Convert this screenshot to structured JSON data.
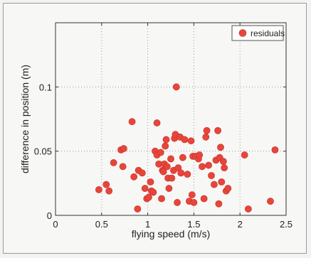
{
  "chart_data": {
    "type": "scatter",
    "title": "",
    "xlabel": "flying speed (m/s)",
    "ylabel": "difference in position (m)",
    "xlim": [
      0,
      2.5
    ],
    "ylim": [
      0,
      0.15
    ],
    "xticks": [
      0,
      0.5,
      1,
      1.5,
      2,
      2.5
    ],
    "xtick_labels": [
      "0",
      "0.5",
      "1",
      "1.5",
      "2",
      "2.5"
    ],
    "yticks": [
      0,
      0.05,
      0.1
    ],
    "ytick_labels": [
      "0",
      "0.05",
      "0.1"
    ],
    "grid": true,
    "grid_style": "dotted",
    "legend": {
      "position": "top-right",
      "entries": [
        "residuals"
      ]
    },
    "series": [
      {
        "name": "residuals",
        "color": "#e8453a",
        "points": [
          [
            0.47,
            0.02
          ],
          [
            0.55,
            0.024
          ],
          [
            0.58,
            0.019
          ],
          [
            0.63,
            0.041
          ],
          [
            0.71,
            0.051
          ],
          [
            0.73,
            0.038
          ],
          [
            0.74,
            0.052
          ],
          [
            0.83,
            0.073
          ],
          [
            0.85,
            0.03
          ],
          [
            0.89,
            0.005
          ],
          [
            0.9,
            0.035
          ],
          [
            0.94,
            0.033
          ],
          [
            0.97,
            0.021
          ],
          [
            0.99,
            0.013
          ],
          [
            1.01,
            0.014
          ],
          [
            1.03,
            0.026
          ],
          [
            1.04,
            0.019
          ],
          [
            1.06,
            0.018
          ],
          [
            1.08,
            0.05
          ],
          [
            1.1,
            0.072
          ],
          [
            1.1,
            0.047
          ],
          [
            1.12,
            0.04
          ],
          [
            1.14,
            0.049
          ],
          [
            1.15,
            0.013
          ],
          [
            1.16,
            0.035
          ],
          [
            1.17,
            0.034
          ],
          [
            1.18,
            0.04
          ],
          [
            1.19,
            0.054
          ],
          [
            1.2,
            0.059
          ],
          [
            1.21,
            0.038
          ],
          [
            1.22,
            0.029
          ],
          [
            1.23,
            0.021
          ],
          [
            1.25,
            0.044
          ],
          [
            1.26,
            0.029
          ],
          [
            1.28,
            0.035
          ],
          [
            1.29,
            0.06
          ],
          [
            1.3,
            0.063
          ],
          [
            1.31,
            0.1
          ],
          [
            1.32,
            0.01
          ],
          [
            1.33,
            0.037
          ],
          [
            1.35,
            0.061
          ],
          [
            1.36,
            0.033
          ],
          [
            1.38,
            0.045
          ],
          [
            1.4,
            0.059
          ],
          [
            1.43,
            0.032
          ],
          [
            1.45,
            0.011
          ],
          [
            1.47,
            0.058
          ],
          [
            1.48,
            0.016
          ],
          [
            1.49,
            0.046
          ],
          [
            1.5,
            0.01
          ],
          [
            1.52,
            0.046
          ],
          [
            1.55,
            0.044
          ],
          [
            1.56,
            0.047
          ],
          [
            1.59,
            0.038
          ],
          [
            1.61,
            0.013
          ],
          [
            1.63,
            0.061
          ],
          [
            1.64,
            0.066
          ],
          [
            1.66,
            0.039
          ],
          [
            1.69,
            0.031
          ],
          [
            1.72,
            0.024
          ],
          [
            1.74,
            0.043
          ],
          [
            1.76,
            0.066
          ],
          [
            1.77,
            0.009
          ],
          [
            1.78,
            0.045
          ],
          [
            1.79,
            0.053
          ],
          [
            1.8,
            0.026
          ],
          [
            1.82,
            0.042
          ],
          [
            1.83,
            0.037
          ],
          [
            1.85,
            0.019
          ],
          [
            1.87,
            0.021
          ],
          [
            2.05,
            0.047
          ],
          [
            2.09,
            0.005
          ],
          [
            2.33,
            0.011
          ],
          [
            2.38,
            0.051
          ]
        ]
      }
    ]
  }
}
